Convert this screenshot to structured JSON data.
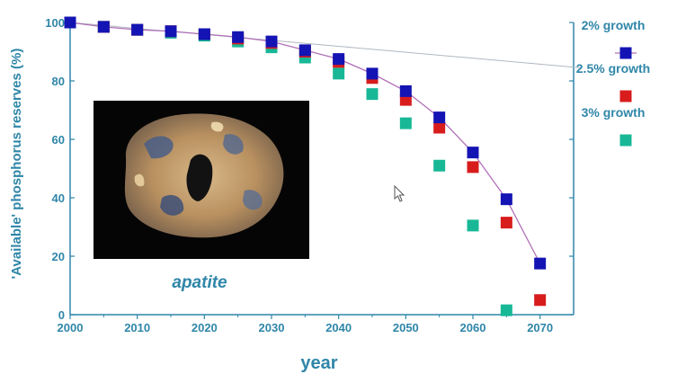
{
  "chart_data": {
    "type": "scatter",
    "xlabel": "year",
    "ylabel": "'Available' phosphorus reserves (%)",
    "xlim": [
      2000,
      2075
    ],
    "ylim": [
      0,
      100
    ],
    "x_ticks": [
      "2000",
      "2010",
      "2020",
      "2030",
      "2040",
      "2050",
      "2060",
      "2070"
    ],
    "y_ticks": [
      "0",
      "20",
      "40",
      "60",
      "80",
      "100"
    ],
    "legend_position": "right",
    "series": [
      {
        "name": "2% growth",
        "color": "#1414b4",
        "marker": "square",
        "connected": true,
        "x": [
          2000,
          2005,
          2010,
          2015,
          2020,
          2025,
          2030,
          2035,
          2040,
          2045,
          2050,
          2055,
          2060,
          2065,
          2070
        ],
        "y": [
          100,
          98.5,
          97.5,
          97,
          96,
          95,
          93.5,
          90.5,
          87.5,
          82.5,
          76.5,
          67.5,
          55.5,
          39.5,
          17.5
        ]
      },
      {
        "name": "2.5% growth",
        "color": "#d81c1c",
        "marker": "square",
        "connected": false,
        "x": [
          2000,
          2005,
          2010,
          2015,
          2020,
          2025,
          2030,
          2035,
          2040,
          2045,
          2050,
          2055,
          2060,
          2065,
          2070
        ],
        "y": [
          100,
          98.5,
          97.5,
          97,
          96,
          94.5,
          93,
          90,
          86.5,
          81,
          73.5,
          64,
          50.5,
          31.5,
          5
        ]
      },
      {
        "name": "3% growth",
        "color": "#18b896",
        "marker": "square",
        "connected": false,
        "x": [
          2000,
          2005,
          2010,
          2015,
          2020,
          2025,
          2030,
          2035,
          2040,
          2045,
          2050,
          2055,
          2060,
          2065
        ],
        "y": [
          100,
          98.5,
          97.5,
          96.5,
          95.5,
          93.5,
          91.5,
          88,
          82.5,
          75.5,
          65.5,
          51,
          30.5,
          1.5
        ]
      }
    ],
    "reference_line": {
      "x": [
        2000,
        2076
      ],
      "y": [
        100,
        84.5
      ],
      "color": "#b0b8c0"
    },
    "annotation": "apatite"
  }
}
